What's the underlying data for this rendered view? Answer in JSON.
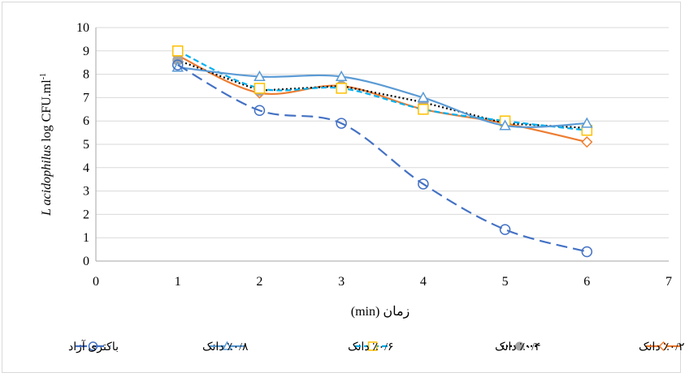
{
  "chart_data": {
    "type": "line",
    "xlabel": "زمان (min)",
    "ylabel_italic": "L acidophilus",
    "ylabel_rest": " log  CFU.ml",
    "ylabel_sup": "-1",
    "xlim": [
      0,
      7
    ],
    "ylim": [
      0,
      10
    ],
    "xticks": [
      "0",
      "1",
      "2",
      "3",
      "4",
      "5",
      "6",
      "7"
    ],
    "yticks": [
      "0",
      "1",
      "2",
      "3",
      "4",
      "5",
      "6",
      "7",
      "8",
      "9",
      "10"
    ],
    "grid": "horizontal",
    "legend_position": "bottom",
    "x": [
      1,
      2,
      3,
      4,
      5,
      6
    ],
    "series": [
      {
        "name": "٪۰/۲ دانک",
        "values": [
          8.8,
          7.2,
          7.5,
          6.5,
          5.9,
          5.1
        ],
        "color": "#ED7D31",
        "marker": "diamond",
        "dash": "solid",
        "smooth": true
      },
      {
        "name": "٪۰/۴ دانک",
        "values": [
          8.6,
          7.3,
          7.5,
          6.8,
          5.9,
          5.7
        ],
        "color": "#000000",
        "marker_color": "#A5A5A5",
        "marker": "circle-filled",
        "dash": "dotted",
        "smooth": false
      },
      {
        "name": "٪۰/۶ دانک",
        "values": [
          9.0,
          7.4,
          7.4,
          6.5,
          6.0,
          5.6
        ],
        "color": "#FFC000",
        "line_color": "#00B0F0",
        "marker": "square",
        "dash": "dashed",
        "smooth": true
      },
      {
        "name": "٪۰/۸ دانک",
        "values": [
          8.3,
          7.9,
          7.9,
          7.0,
          5.8,
          5.9
        ],
        "color": "#5B9BD5",
        "marker": "triangle",
        "dash": "solid",
        "smooth": true
      },
      {
        "name": "باکتری آزاد",
        "values": [
          8.4,
          6.45,
          5.9,
          3.3,
          1.35,
          0.4
        ],
        "color": "#4472C4",
        "marker": "circle",
        "dash": "longdash",
        "smooth": true
      }
    ]
  }
}
